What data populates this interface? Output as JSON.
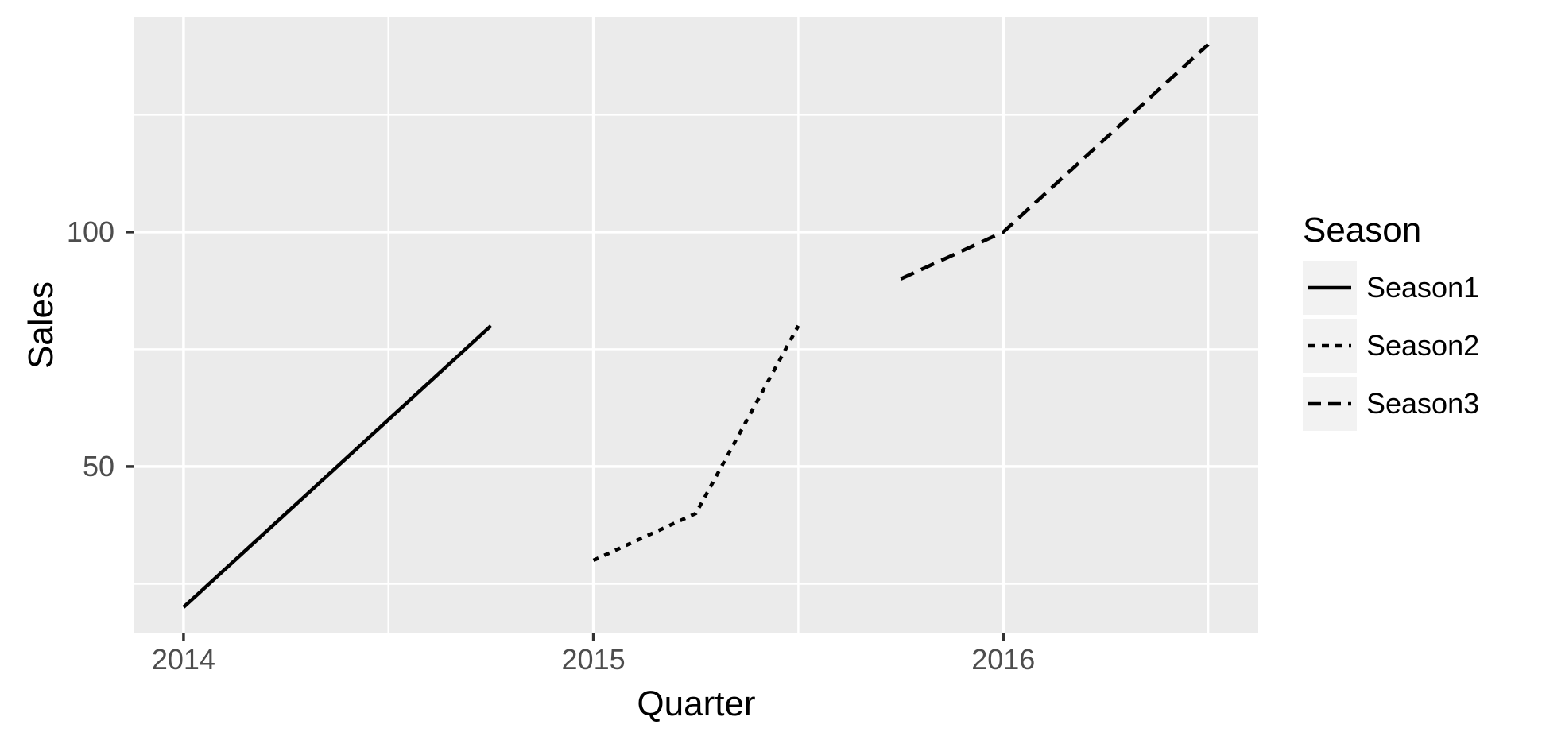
{
  "chart_data": {
    "type": "line",
    "title": "",
    "xlabel": "Quarter",
    "ylabel": "Sales",
    "legend_title": "Season",
    "legend_position": "right",
    "grid": true,
    "x_range": [
      2013.878,
      2016.622
    ],
    "y_range": [
      14.4,
      145.9
    ],
    "x_major_ticks": [
      2014,
      2015,
      2016
    ],
    "x_minor_gridlines": [
      2014.5,
      2015.5,
      2016.5
    ],
    "y_major_ticks": [
      50,
      100
    ],
    "y_minor_gridlines": [
      25,
      75,
      125
    ],
    "series": [
      {
        "name": "Season1",
        "linestyle": "solid",
        "color": "#000000",
        "x": [
          2014.0,
          2014.25,
          2014.5,
          2014.75
        ],
        "y": [
          20,
          40,
          60,
          80
        ]
      },
      {
        "name": "Season2",
        "linestyle": "dotted",
        "color": "#000000",
        "x": [
          2015.0,
          2015.25,
          2015.5
        ],
        "y": [
          30,
          40,
          80
        ]
      },
      {
        "name": "Season3",
        "linestyle": "dashed",
        "color": "#000000",
        "x": [
          2015.75,
          2016.0,
          2016.25,
          2016.5
        ],
        "y": [
          90,
          100,
          120,
          140
        ]
      }
    ],
    "colors": {
      "line": "#000000",
      "panel_bg": "#EBEBEB",
      "grid": "#FFFFFF",
      "tick_mark": "#333333",
      "tick_label": "#4D4D4D",
      "axis_title": "#000000",
      "legend_key_bg": "#F2F2F2",
      "background": "#FFFFFF"
    }
  }
}
